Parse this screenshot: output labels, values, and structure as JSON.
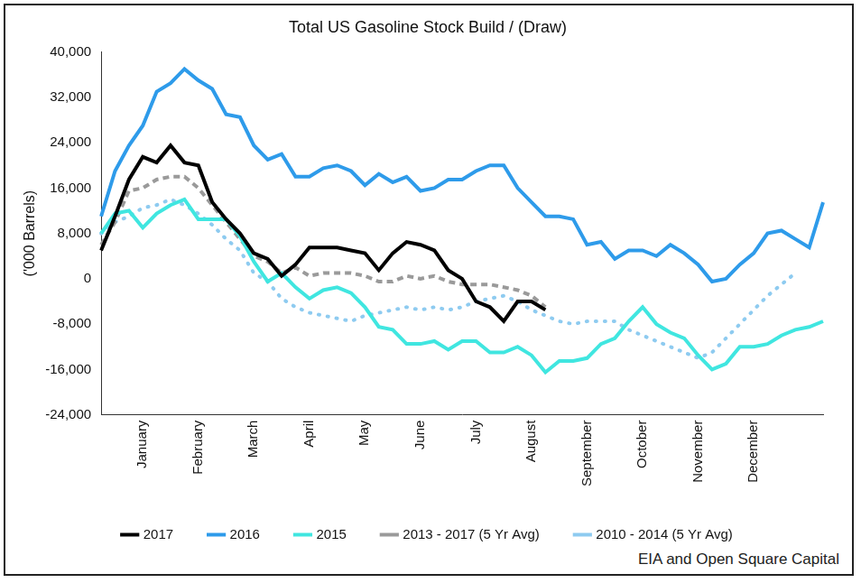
{
  "chart_data": {
    "type": "line",
    "title": "Total US Gasoline Stock Build / (Draw)",
    "y_label": "('000 Barrels)",
    "annotations": [
      "EIA and Open Square Capital"
    ],
    "categories": [
      null,
      null,
      null,
      "January",
      null,
      null,
      null,
      "February",
      null,
      null,
      null,
      "March",
      null,
      null,
      null,
      "April",
      null,
      null,
      null,
      "May",
      null,
      null,
      null,
      "June",
      null,
      null,
      null,
      "July",
      null,
      null,
      null,
      "August",
      null,
      null,
      null,
      "September",
      null,
      null,
      null,
      "October",
      null,
      null,
      null,
      "November",
      null,
      null,
      null,
      "December",
      null,
      null,
      null,
      null,
      null
    ],
    "series": [
      {
        "name": "2017",
        "color": "#000000",
        "line_style": "solid",
        "values": [
          5000,
          11000,
          17500,
          21500,
          20500,
          23500,
          20500,
          20000,
          13500,
          10500,
          8000,
          4500,
          3500,
          500,
          2500,
          5500,
          5500,
          5500,
          5000,
          4500,
          1500,
          4500,
          6500,
          6000,
          5000,
          1500,
          0,
          -4000,
          -5000,
          -7500,
          -4000,
          -4000,
          -5500,
          null,
          null,
          null,
          null,
          null,
          null,
          null,
          null,
          null,
          null,
          null,
          null,
          null,
          null,
          null,
          null,
          null,
          null,
          null,
          null
        ]
      },
      {
        "name": "2016",
        "color": "#2e9bea",
        "line_style": "solid",
        "values": [
          11000,
          19000,
          23500,
          27000,
          33000,
          34500,
          37000,
          35000,
          33500,
          29000,
          28500,
          23500,
          21000,
          22000,
          18000,
          18000,
          19500,
          20000,
          19000,
          16500,
          18500,
          17000,
          18000,
          15500,
          16000,
          17500,
          17500,
          19000,
          20000,
          20000,
          16000,
          13500,
          11000,
          11000,
          10500,
          6000,
          6500,
          3500,
          5000,
          5000,
          4000,
          6000,
          4500,
          2500,
          -500,
          0,
          2500,
          4500,
          8000,
          8500,
          7000,
          5500,
          13500
        ]
      },
      {
        "name": "2015",
        "color": "#40e6e0",
        "line_style": "solid",
        "values": [
          8000,
          11500,
          12000,
          9000,
          11500,
          13000,
          14000,
          10500,
          10500,
          10500,
          7500,
          3000,
          -500,
          1000,
          -1500,
          -3500,
          -2000,
          -1500,
          -2500,
          -5000,
          -8500,
          -9000,
          -11500,
          -11500,
          -11000,
          -12500,
          -11000,
          -11000,
          -13000,
          -13000,
          -12000,
          -13500,
          -16500,
          -14500,
          -14500,
          -14000,
          -11500,
          -10500,
          -7500,
          -5000,
          -8000,
          -9500,
          -10500,
          -13500,
          -16000,
          -15000,
          -12000,
          -12000,
          -11500,
          -10000,
          -9000,
          -8500,
          -7500
        ]
      },
      {
        "name": "2013 - 2017 (5 Yr Avg)",
        "color": "#9a9a9a",
        "line_style": "dashed",
        "values": [
          6000,
          10000,
          15500,
          16000,
          17500,
          18000,
          18000,
          16000,
          13000,
          10000,
          7000,
          4000,
          3000,
          1000,
          2000,
          500,
          1000,
          1000,
          1000,
          500,
          -500,
          -500,
          500,
          0,
          500,
          -500,
          -1000,
          -1000,
          -1000,
          -1500,
          -2000,
          -3000,
          -5000,
          null,
          null,
          null,
          null,
          null,
          null,
          null,
          null,
          null,
          null,
          null,
          null,
          null,
          null,
          null,
          null,
          null,
          null,
          null,
          null
        ]
      },
      {
        "name": "2010 - 2014 (5 Yr Avg)",
        "color": "#8ecbf0",
        "line_style": "dotted",
        "values": [
          8000,
          10000,
          11000,
          12500,
          13000,
          14000,
          13000,
          11500,
          9500,
          7000,
          5000,
          1000,
          -500,
          -3500,
          -5000,
          -6000,
          -6500,
          -7000,
          -7500,
          -6500,
          -6000,
          -5500,
          -5000,
          -5500,
          -5000,
          -5500,
          -5000,
          -4000,
          -3500,
          -3000,
          -4000,
          -5500,
          -6500,
          -7500,
          -8000,
          -7500,
          -7500,
          -7500,
          -9000,
          -10000,
          -11000,
          -12000,
          -13000,
          -14000,
          -13000,
          -10500,
          -8000,
          -5500,
          -3000,
          -1000,
          1000,
          null,
          null
        ]
      }
    ],
    "ylim": [
      -24000,
      40000
    ],
    "yticks": [
      {
        "value": -24000,
        "label": "-24,000"
      },
      {
        "value": -16000,
        "label": "-16,000"
      },
      {
        "value": -8000,
        "label": "-8,000"
      },
      0,
      {
        "value": 8000,
        "label": "8,000"
      },
      {
        "value": 16000,
        "label": "16,000"
      },
      {
        "value": 24000,
        "label": "24,000"
      },
      {
        "value": 32000,
        "label": "32,000"
      },
      {
        "value": 40000,
        "label": "40,000"
      }
    ],
    "grid": false,
    "legend": "bottom"
  }
}
